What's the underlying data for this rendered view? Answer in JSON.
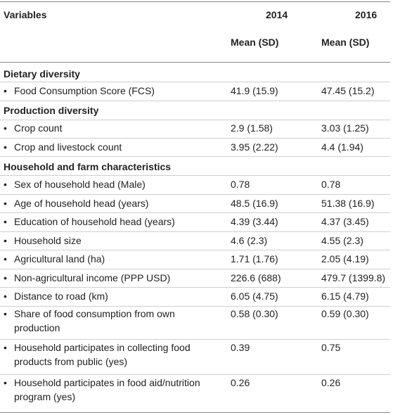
{
  "header": {
    "col0": "Variables",
    "col1": "2014",
    "col2": "2016",
    "sub1": "Mean (SD)",
    "sub2": "Mean (SD)"
  },
  "sections": [
    {
      "title": "Dietary diversity",
      "rows": [
        {
          "label": "Food Consumption Score (FCS)",
          "v2014": "41.9 (15.9)",
          "v2016": "47.45 (15.2)"
        }
      ]
    },
    {
      "title": "Production diversity",
      "rows": [
        {
          "label": "Crop count",
          "v2014": "2.9 (1.58)",
          "v2016": "3.03 (1.25)"
        },
        {
          "label": "Crop and livestock count",
          "v2014": "3.95 (2.22)",
          "v2016": "4.4 (1.94)"
        }
      ]
    },
    {
      "title": "Household and farm characteristics",
      "rows": [
        {
          "label": "Sex of household head (Male)",
          "v2014": "0.78",
          "v2016": "0.78"
        },
        {
          "label": "Age of household head (years)",
          "v2014": "48.5 (16.9)",
          "v2016": "51.38 (16.9)"
        },
        {
          "label": "Education of household head (years)",
          "v2014": "4.39 (3.44)",
          "v2016": "4.37 (3.45)"
        },
        {
          "label": "Household size",
          "v2014": "4.6 (2.3)",
          "v2016": "4.55 (2.3)"
        },
        {
          "label": "Agricultural land (ha)",
          "v2014": "1.71 (1.76)",
          "v2016": "2.05 (4.19)"
        },
        {
          "label": "Non-agricultural income (PPP USD)",
          "v2014": "226.6 (688)",
          "v2016": "479.7 (1399.8)"
        },
        {
          "label": "Distance to road (km)",
          "v2014": "6.05 (4.75)",
          "v2016": "6.15 (4.79)"
        },
        {
          "label": "Share of food consumption from own production",
          "v2014": "0.58 (0.30)",
          "v2016": "0.59 (0.30)"
        },
        {
          "label": "Household participates in collecting food products from public (yes)",
          "v2014": "0.39",
          "v2016": "0.75"
        },
        {
          "label": "Household participates in food aid/nutrition program (yes)",
          "v2014": "0.26",
          "v2016": "0.26"
        }
      ]
    }
  ]
}
